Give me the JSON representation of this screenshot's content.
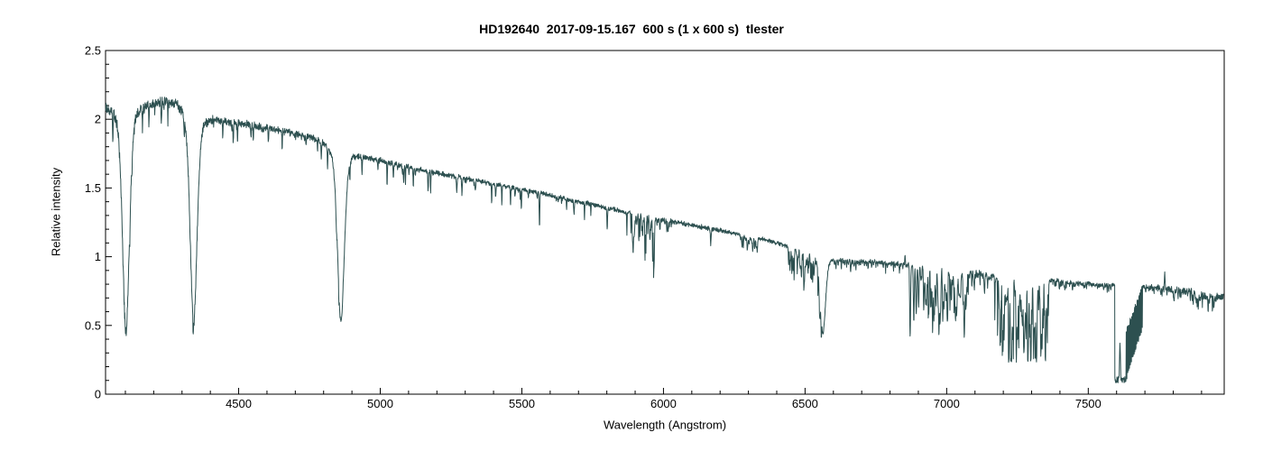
{
  "chart_data": {
    "type": "line",
    "title": "HD192640  2017-09-15.167  600 s (1 x 600 s)  tlester",
    "xlabel": "Wavelength (Angstrom)",
    "ylabel": "Relative intensity",
    "xlim": [
      4030,
      7980
    ],
    "ylim": [
      0,
      2.5
    ],
    "x_major_ticks": [
      4500,
      5000,
      5500,
      6000,
      6500,
      7000,
      7500
    ],
    "x_minor_step": 100,
    "y_major_ticks": [
      0,
      0.5,
      1,
      1.5,
      2,
      2.5
    ],
    "y_minor_step": 0.1,
    "grid": "off",
    "legend": "none",
    "line_color": "#2d5050",
    "axis_color": "#000000",
    "background_color": "#ffffff",
    "seed": 192640,
    "sample_step_A": 0.8,
    "continuum": [
      [
        4030,
        2.1
      ],
      [
        4090,
        2.1
      ],
      [
        4160,
        2.11
      ],
      [
        4230,
        2.15
      ],
      [
        4300,
        2.13
      ],
      [
        4380,
        2.04
      ],
      [
        4450,
        1.99
      ],
      [
        4550,
        1.96
      ],
      [
        4650,
        1.92
      ],
      [
        4750,
        1.88
      ],
      [
        4850,
        1.82
      ],
      [
        4950,
        1.73
      ],
      [
        5050,
        1.68
      ],
      [
        5150,
        1.63
      ],
      [
        5250,
        1.59
      ],
      [
        5350,
        1.55
      ],
      [
        5450,
        1.51
      ],
      [
        5550,
        1.47
      ],
      [
        5650,
        1.42
      ],
      [
        5750,
        1.38
      ],
      [
        5850,
        1.33
      ],
      [
        5950,
        1.29
      ],
      [
        6050,
        1.25
      ],
      [
        6150,
        1.21
      ],
      [
        6250,
        1.17
      ],
      [
        6350,
        1.13
      ],
      [
        6450,
        1.07
      ],
      [
        6550,
        1.02
      ],
      [
        6650,
        0.975
      ],
      [
        6750,
        0.965
      ],
      [
        6850,
        0.945
      ],
      [
        6950,
        0.925
      ],
      [
        7050,
        0.905
      ],
      [
        7150,
        0.875
      ],
      [
        7250,
        0.855
      ],
      [
        7350,
        0.835
      ],
      [
        7450,
        0.815
      ],
      [
        7550,
        0.795
      ],
      [
        7650,
        0.785
      ],
      [
        7750,
        0.775
      ],
      [
        7820,
        0.76
      ],
      [
        7880,
        0.745
      ],
      [
        7930,
        0.72
      ],
      [
        7980,
        0.695
      ]
    ],
    "balmer_lines": [
      {
        "name": "H-delta",
        "center": 4102,
        "core_intensity": 0.46,
        "sigma": 12,
        "gamma": 15
      },
      {
        "name": "H-gamma",
        "center": 4341,
        "core_intensity": 0.52,
        "sigma": 12,
        "gamma": 15
      },
      {
        "name": "H-beta",
        "center": 4861,
        "core_intensity": 0.53,
        "sigma": 12,
        "gamma": 15
      },
      {
        "name": "H-alpha",
        "center": 6563,
        "core_intensity": 0.44,
        "sigma": 9,
        "gamma": 12
      }
    ],
    "narrow_lines": [
      {
        "center": 4227,
        "depth": 0.16,
        "width": 1.2
      },
      {
        "center": 4481,
        "depth": 0.14,
        "width": 1.2
      },
      {
        "center": 5169,
        "depth": 0.15,
        "width": 1.2
      },
      {
        "center": 5270,
        "depth": 0.12,
        "width": 1.2
      },
      {
        "center": 6167,
        "depth": 0.12,
        "width": 1.2
      },
      {
        "center": 6871,
        "depth": 0.53,
        "width": 1.6
      },
      {
        "center": 6884,
        "depth": 0.41,
        "width": 1.6
      },
      {
        "center": 7802,
        "depth": 0.08,
        "width": 1.8
      }
    ],
    "telluric_bands": [
      {
        "name": "NaD-H2O-5890",
        "range": [
          5882,
          5968
        ],
        "spacing": 3.5,
        "max_depth": 0.34,
        "power": 1.2
      },
      {
        "name": "H2O-6000",
        "range": [
          5968,
          6030
        ],
        "spacing": 5,
        "max_depth": 0.1,
        "power": 1.5
      },
      {
        "name": "O2-6280",
        "range": [
          6270,
          6335
        ],
        "spacing": 4,
        "max_depth": 0.12,
        "power": 1.5
      },
      {
        "name": "H2O-6500",
        "range": [
          6440,
          6560
        ],
        "spacing": 3.5,
        "max_depth": 0.23,
        "power": 1.2
      },
      {
        "name": "H2O-6600",
        "range": [
          6590,
          6860
        ],
        "spacing": 6,
        "max_depth": 0.08,
        "power": 1.5
      },
      {
        "name": "H2O-6900",
        "range": [
          6890,
          7078
        ],
        "spacing": 2.6,
        "max_depth": 0.38,
        "power": 1.1
      },
      {
        "name": "H2O-7100",
        "range": [
          7078,
          7168
        ],
        "spacing": 4,
        "max_depth": 0.14,
        "power": 1.4
      },
      {
        "name": "H2O-7200",
        "range": [
          7168,
          7360
        ],
        "spacing": 2.4,
        "max_depth": 0.58,
        "power": 0.9
      },
      {
        "name": "H2O-7400",
        "range": [
          7360,
          7450
        ],
        "spacing": 5,
        "max_depth": 0.07,
        "power": 1.5
      },
      {
        "name": "H2O-7500",
        "range": [
          7450,
          7585
        ],
        "spacing": 6,
        "max_depth": 0.05,
        "power": 1.5
      },
      {
        "name": "H2O-7700",
        "range": [
          7700,
          7860
        ],
        "spacing": 6,
        "max_depth": 0.06,
        "power": 1.5
      },
      {
        "name": "H2O-7900",
        "range": [
          7860,
          7955
        ],
        "spacing": 3.5,
        "max_depth": 0.13,
        "power": 1.4
      }
    ],
    "o2_a_band": {
      "core_range": [
        7594,
        7634
      ],
      "core_intensity": 0.08,
      "comb_range": [
        7634,
        7692
      ],
      "comb_bottom": [
        0.12,
        0.5
      ],
      "comb_top": [
        0.45,
        0.78
      ],
      "comb_period": 3.2
    },
    "spikes": [
      {
        "center": 6853,
        "top": 1.01
      },
      {
        "center": 7770,
        "top": 0.89
      }
    ],
    "noise_amplitude": [
      [
        4030,
        0.03
      ],
      [
        4250,
        0.026
      ],
      [
        4500,
        0.018
      ],
      [
        4900,
        0.014
      ],
      [
        5400,
        0.012
      ],
      [
        6000,
        0.011
      ],
      [
        6600,
        0.009
      ],
      [
        7000,
        0.014
      ],
      [
        7400,
        0.01
      ],
      [
        7700,
        0.012
      ],
      [
        7960,
        0.02
      ]
    ],
    "metal_forest": {
      "range": [
        4040,
        5880
      ],
      "step": 2.5,
      "probability_per_step": 0.1,
      "max_depth": 0.16
    }
  }
}
